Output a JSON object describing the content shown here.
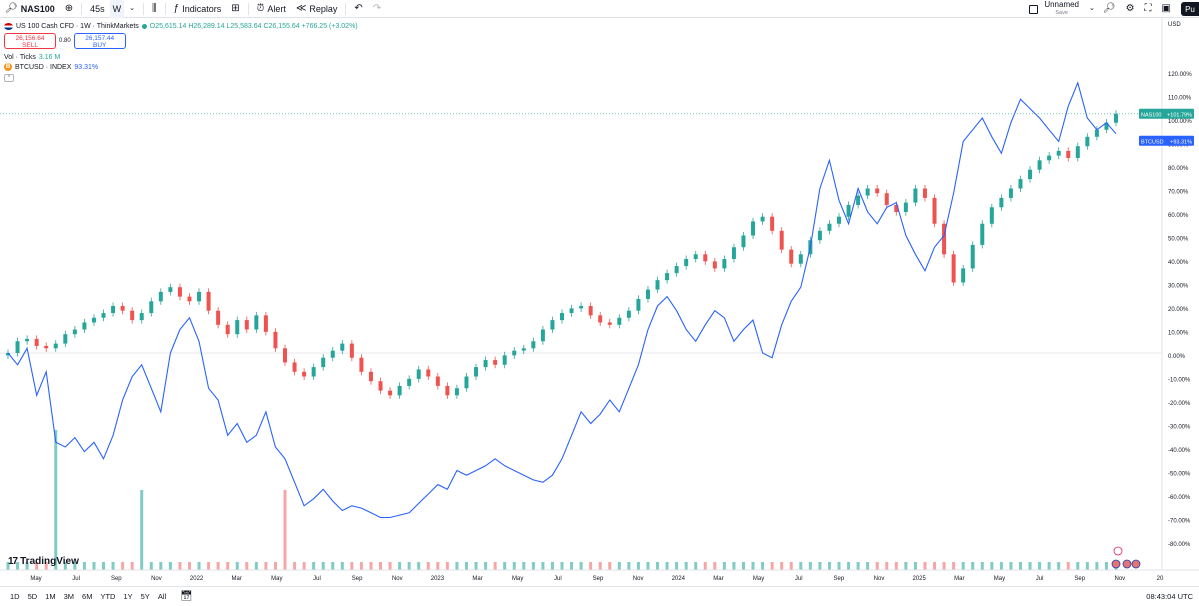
{
  "toolbar": {
    "symbol": "NAS100",
    "interval_seconds": "45s",
    "interval": "W",
    "indicators_label": "Indicators",
    "alert_label": "Alert",
    "replay_label": "Replay",
    "layout_name": "Unnamed",
    "layout_status": "Save",
    "publish_label": "Pu"
  },
  "legend": {
    "title": "US 100 Cash CFD · 1W · ThinkMarkets",
    "ohlc": "O25,615.14 H26,289.14 L25,583.64 C26,155.64 +766.25 (+3.02%)",
    "sell_price": "26,156.64",
    "sell_label": "SELL",
    "spread": "0.80",
    "buy_price": "26,157.44",
    "buy_label": "BUY",
    "vol_label": "Vol · Ticks",
    "vol_value": "3.16 M",
    "btc_label": "BTCUSD · INDEX",
    "btc_value": "93.31%",
    "collapse": "^"
  },
  "bottom": {
    "ranges": [
      "1D",
      "5D",
      "1M",
      "3M",
      "6M",
      "YTD",
      "1Y",
      "5Y",
      "All"
    ],
    "time": "08:43:04 UTC"
  },
  "logo_text": "TradingView",
  "colors": {
    "up": "#26a69a",
    "down": "#ef5350",
    "btc": "#2962ff",
    "up_vol": "#80cbc4",
    "down_vol": "#f7a6a6"
  },
  "chart_data": {
    "type": "line",
    "axis_unit": "percent",
    "ylim": [
      -90,
      125
    ],
    "y_ticks": [
      "USD",
      "120.00%",
      "110.00%",
      "100.00%",
      "90.00%",
      "80.00%",
      "70.00%",
      "60.00%",
      "50.00%",
      "40.00%",
      "30.00%",
      "20.00%",
      "10.00%",
      "0.00%",
      "-10.00%",
      "-20.00%",
      "-30.00%",
      "-40.00%",
      "-50.00%",
      "-60.00%",
      "-70.00%",
      "-80.00%"
    ],
    "x_ticks": [
      "May",
      "Jul",
      "Sep",
      "Nov",
      "2022",
      "Mar",
      "May",
      "Jul",
      "Sep",
      "Nov",
      "2023",
      "Mar",
      "May",
      "Jul",
      "Sep",
      "Nov",
      "2024",
      "Mar",
      "May",
      "Jul",
      "Sep",
      "Nov",
      "2025",
      "Mar",
      "May",
      "Jul",
      "Sep",
      "Nov",
      "20"
    ],
    "series": [
      {
        "name": "NAS100",
        "last_label": "+101.79%",
        "kind": "candles",
        "values": [
          0,
          5,
          6,
          3,
          2,
          4,
          8,
          10,
          13,
          15,
          17,
          20,
          18,
          14,
          17,
          22,
          26,
          28,
          24,
          22,
          26,
          18,
          12,
          8,
          14,
          10,
          16,
          9,
          2,
          -4,
          -8,
          -10,
          -6,
          -2,
          1,
          4,
          -2,
          -8,
          -12,
          -16,
          -18,
          -14,
          -11,
          -7,
          -10,
          -14,
          -18,
          -15,
          -10,
          -6,
          -3,
          -5,
          -1,
          1,
          2,
          5,
          10,
          14,
          17,
          19,
          20,
          16,
          13,
          12,
          15,
          18,
          23,
          27,
          31,
          34,
          37,
          40,
          42,
          39,
          36,
          40,
          45,
          50,
          56,
          58,
          52,
          44,
          38,
          42,
          48,
          52,
          55,
          58,
          63,
          67,
          70,
          68,
          63,
          60,
          64,
          70,
          66,
          55,
          42,
          30,
          36,
          46,
          55,
          62,
          66,
          70,
          74,
          78,
          82,
          84,
          86,
          83,
          88,
          92,
          95,
          98,
          101.79
        ],
        "volumes_pct": [
          2,
          2,
          2,
          2,
          2,
          35,
          2,
          2,
          2,
          2,
          2,
          2,
          2,
          2,
          20,
          2,
          2,
          2,
          2,
          2,
          2,
          2,
          2,
          2,
          2,
          2,
          2,
          2,
          2,
          20,
          2,
          2,
          2,
          2,
          2,
          2,
          2,
          2,
          2,
          2,
          2,
          2,
          2,
          2,
          2,
          2,
          2,
          2,
          2,
          2,
          2,
          2,
          2,
          2,
          2,
          2,
          2,
          2,
          2,
          2,
          2,
          2,
          2,
          2,
          2,
          2,
          2,
          2,
          2,
          2,
          2,
          2,
          2,
          2,
          2,
          2,
          2,
          2,
          2,
          2,
          2,
          2,
          2,
          2,
          2,
          2,
          2,
          2,
          2,
          2,
          2,
          2,
          2,
          2,
          2,
          2,
          2,
          2,
          2,
          2,
          2,
          2,
          2,
          2,
          2,
          2,
          2,
          2,
          2,
          2,
          2,
          2,
          2,
          2,
          2,
          2,
          2
        ]
      },
      {
        "name": "BTCUSD",
        "last_label": "+93.31%",
        "kind": "line",
        "values": [
          0,
          -5,
          2,
          -18,
          -8,
          -38,
          -40,
          -36,
          -42,
          -38,
          -45,
          -35,
          -20,
          -10,
          -5,
          -15,
          -25,
          0,
          10,
          15,
          5,
          -15,
          -20,
          -35,
          -30,
          -38,
          -35,
          -25,
          -40,
          -45,
          -55,
          -65,
          -62,
          -58,
          -63,
          -67,
          -65,
          -66,
          -68,
          -70,
          -70,
          -69,
          -68,
          -64,
          -60,
          -56,
          -58,
          -50,
          -52,
          -50,
          -48,
          -45,
          -48,
          -50,
          -52,
          -54,
          -55,
          -52,
          -45,
          -35,
          -25,
          -30,
          -26,
          -20,
          -25,
          -15,
          -5,
          10,
          20,
          24,
          18,
          10,
          5,
          12,
          18,
          15,
          5,
          10,
          14,
          0,
          -2,
          12,
          22,
          28,
          45,
          70,
          82,
          65,
          55,
          70,
          60,
          55,
          62,
          64,
          50,
          42,
          35,
          45,
          50,
          68,
          90,
          95,
          100,
          92,
          85,
          98,
          108,
          104,
          100,
          95,
          90,
          105,
          115,
          100,
          95,
          98,
          93.31
        ]
      }
    ]
  }
}
